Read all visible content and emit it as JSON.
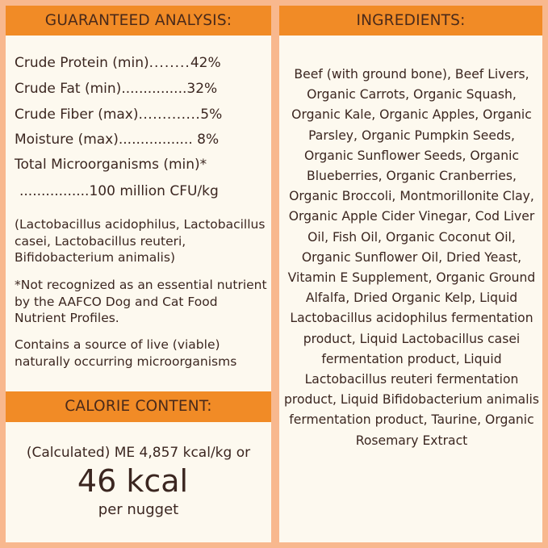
{
  "guaranteed_analysis": {
    "title": "GUARANTEED ANALYSIS:",
    "rows": [
      {
        "label": "Crude Protein (min)",
        "dots": "........",
        "value": "42%"
      },
      {
        "label": "Crude Fat (min)",
        "dots": "...............",
        "value": "32%"
      },
      {
        "label": "Crude Fiber (max)",
        "dots": ".............",
        "value": "5%"
      },
      {
        "label": "Moisture (max)",
        "dots": ".................",
        "value": "8%"
      }
    ],
    "total_label": "Total Microorganisms (min)*",
    "total_dots": "................",
    "total_value": "100 million CFU/kg",
    "strains": "(Lactobacillus acidophilus, Lactobacillus casei, Lactobacillus reuteri, Bifidobacterium animalis)",
    "footnote": "*Not recognized as an essential nutrient by the AAFCO Dog and Cat Food Nutrient Profiles.",
    "live_note": "Contains a source of live (viable) naturally occurring microorganisms"
  },
  "calorie_content": {
    "title": "CALORIE CONTENT:",
    "line1": "(Calculated) ME 4,857 kcal/kg or",
    "big": "46 kcal",
    "line3": "per nugget"
  },
  "ingredients": {
    "title": "INGREDIENTS:",
    "text": "Beef (with ground bone), Beef Livers, Organic Carrots, Organic Squash, Organic Kale, Organic Apples, Organic Parsley, Organic Pumpkin Seeds, Organic Sunflower Seeds, Organic Blueberries, Organic Cranberries, Organic Broccoli, Montmorillonite Clay, Organic Apple Cider Vinegar, Cod Liver Oil, Fish Oil, Organic Coconut Oil, Organic Sunflower Oil, Dried Yeast, Vitamin E Supplement, Organic Ground Alfalfa, Dried Organic Kelp, Liquid Lactobacillus acidophilus fermentation product, Liquid Lactobacillus casei fermentation product, Liquid Lactobacillus reuteri fermentation product, Liquid Bifidobacterium animalis fermentation product, Taurine, Organic Rosemary Extract"
  },
  "colors": {
    "background": "#f8b88e",
    "header": "#f18b26",
    "panel": "#fdf9ef",
    "text": "#3b2620"
  }
}
